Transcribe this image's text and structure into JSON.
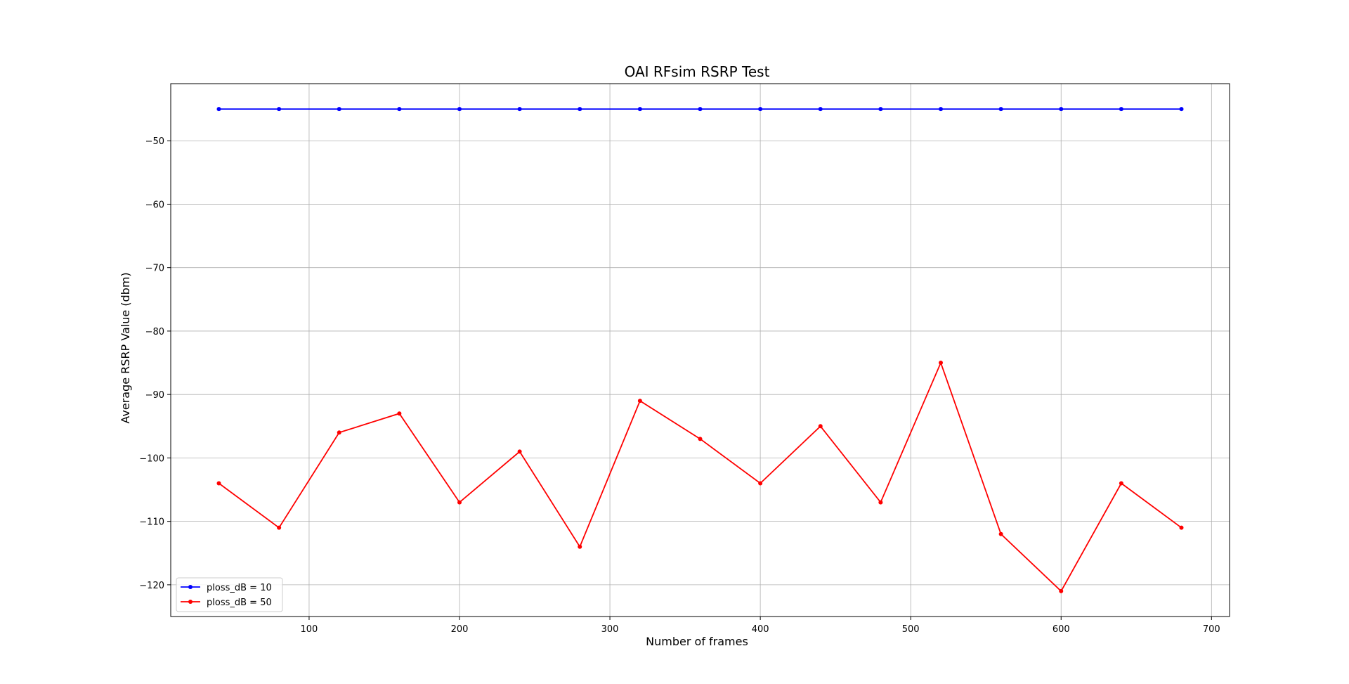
{
  "chart_data": {
    "type": "line",
    "title": "OAI RFsim RSRP Test",
    "xlabel": "Number of frames",
    "ylabel": "Average RSRP Value (dbm)",
    "xlim": [
      8,
      712
    ],
    "ylim": [
      -125,
      -41
    ],
    "xticks": [
      100,
      200,
      300,
      400,
      500,
      600,
      700
    ],
    "yticks": [
      -50,
      -60,
      -70,
      -80,
      -90,
      -100,
      -110,
      -120
    ],
    "xtick_labels": [
      "100",
      "200",
      "300",
      "400",
      "500",
      "600",
      "700"
    ],
    "ytick_labels": [
      "−50",
      "−60",
      "−70",
      "−80",
      "−90",
      "−100",
      "−110",
      "−120"
    ],
    "grid": true,
    "legend_position": "bottom-left",
    "x": [
      40,
      80,
      120,
      160,
      200,
      240,
      280,
      320,
      360,
      400,
      440,
      480,
      520,
      560,
      600,
      640,
      680
    ],
    "series": [
      {
        "name": "ploss_dB = 10",
        "color": "#0000ff",
        "values": [
          -45,
          -45,
          -45,
          -45,
          -45,
          -45,
          -45,
          -45,
          -45,
          -45,
          -45,
          -45,
          -45,
          -45,
          -45,
          -45,
          -45
        ]
      },
      {
        "name": "ploss_dB = 50",
        "color": "#ff0000",
        "values": [
          -104,
          -111,
          -96,
          -93,
          -107,
          -99,
          -114,
          -91,
          -97,
          -104,
          -95,
          -107,
          -85,
          -112,
          -121,
          -104,
          -111
        ]
      }
    ]
  }
}
